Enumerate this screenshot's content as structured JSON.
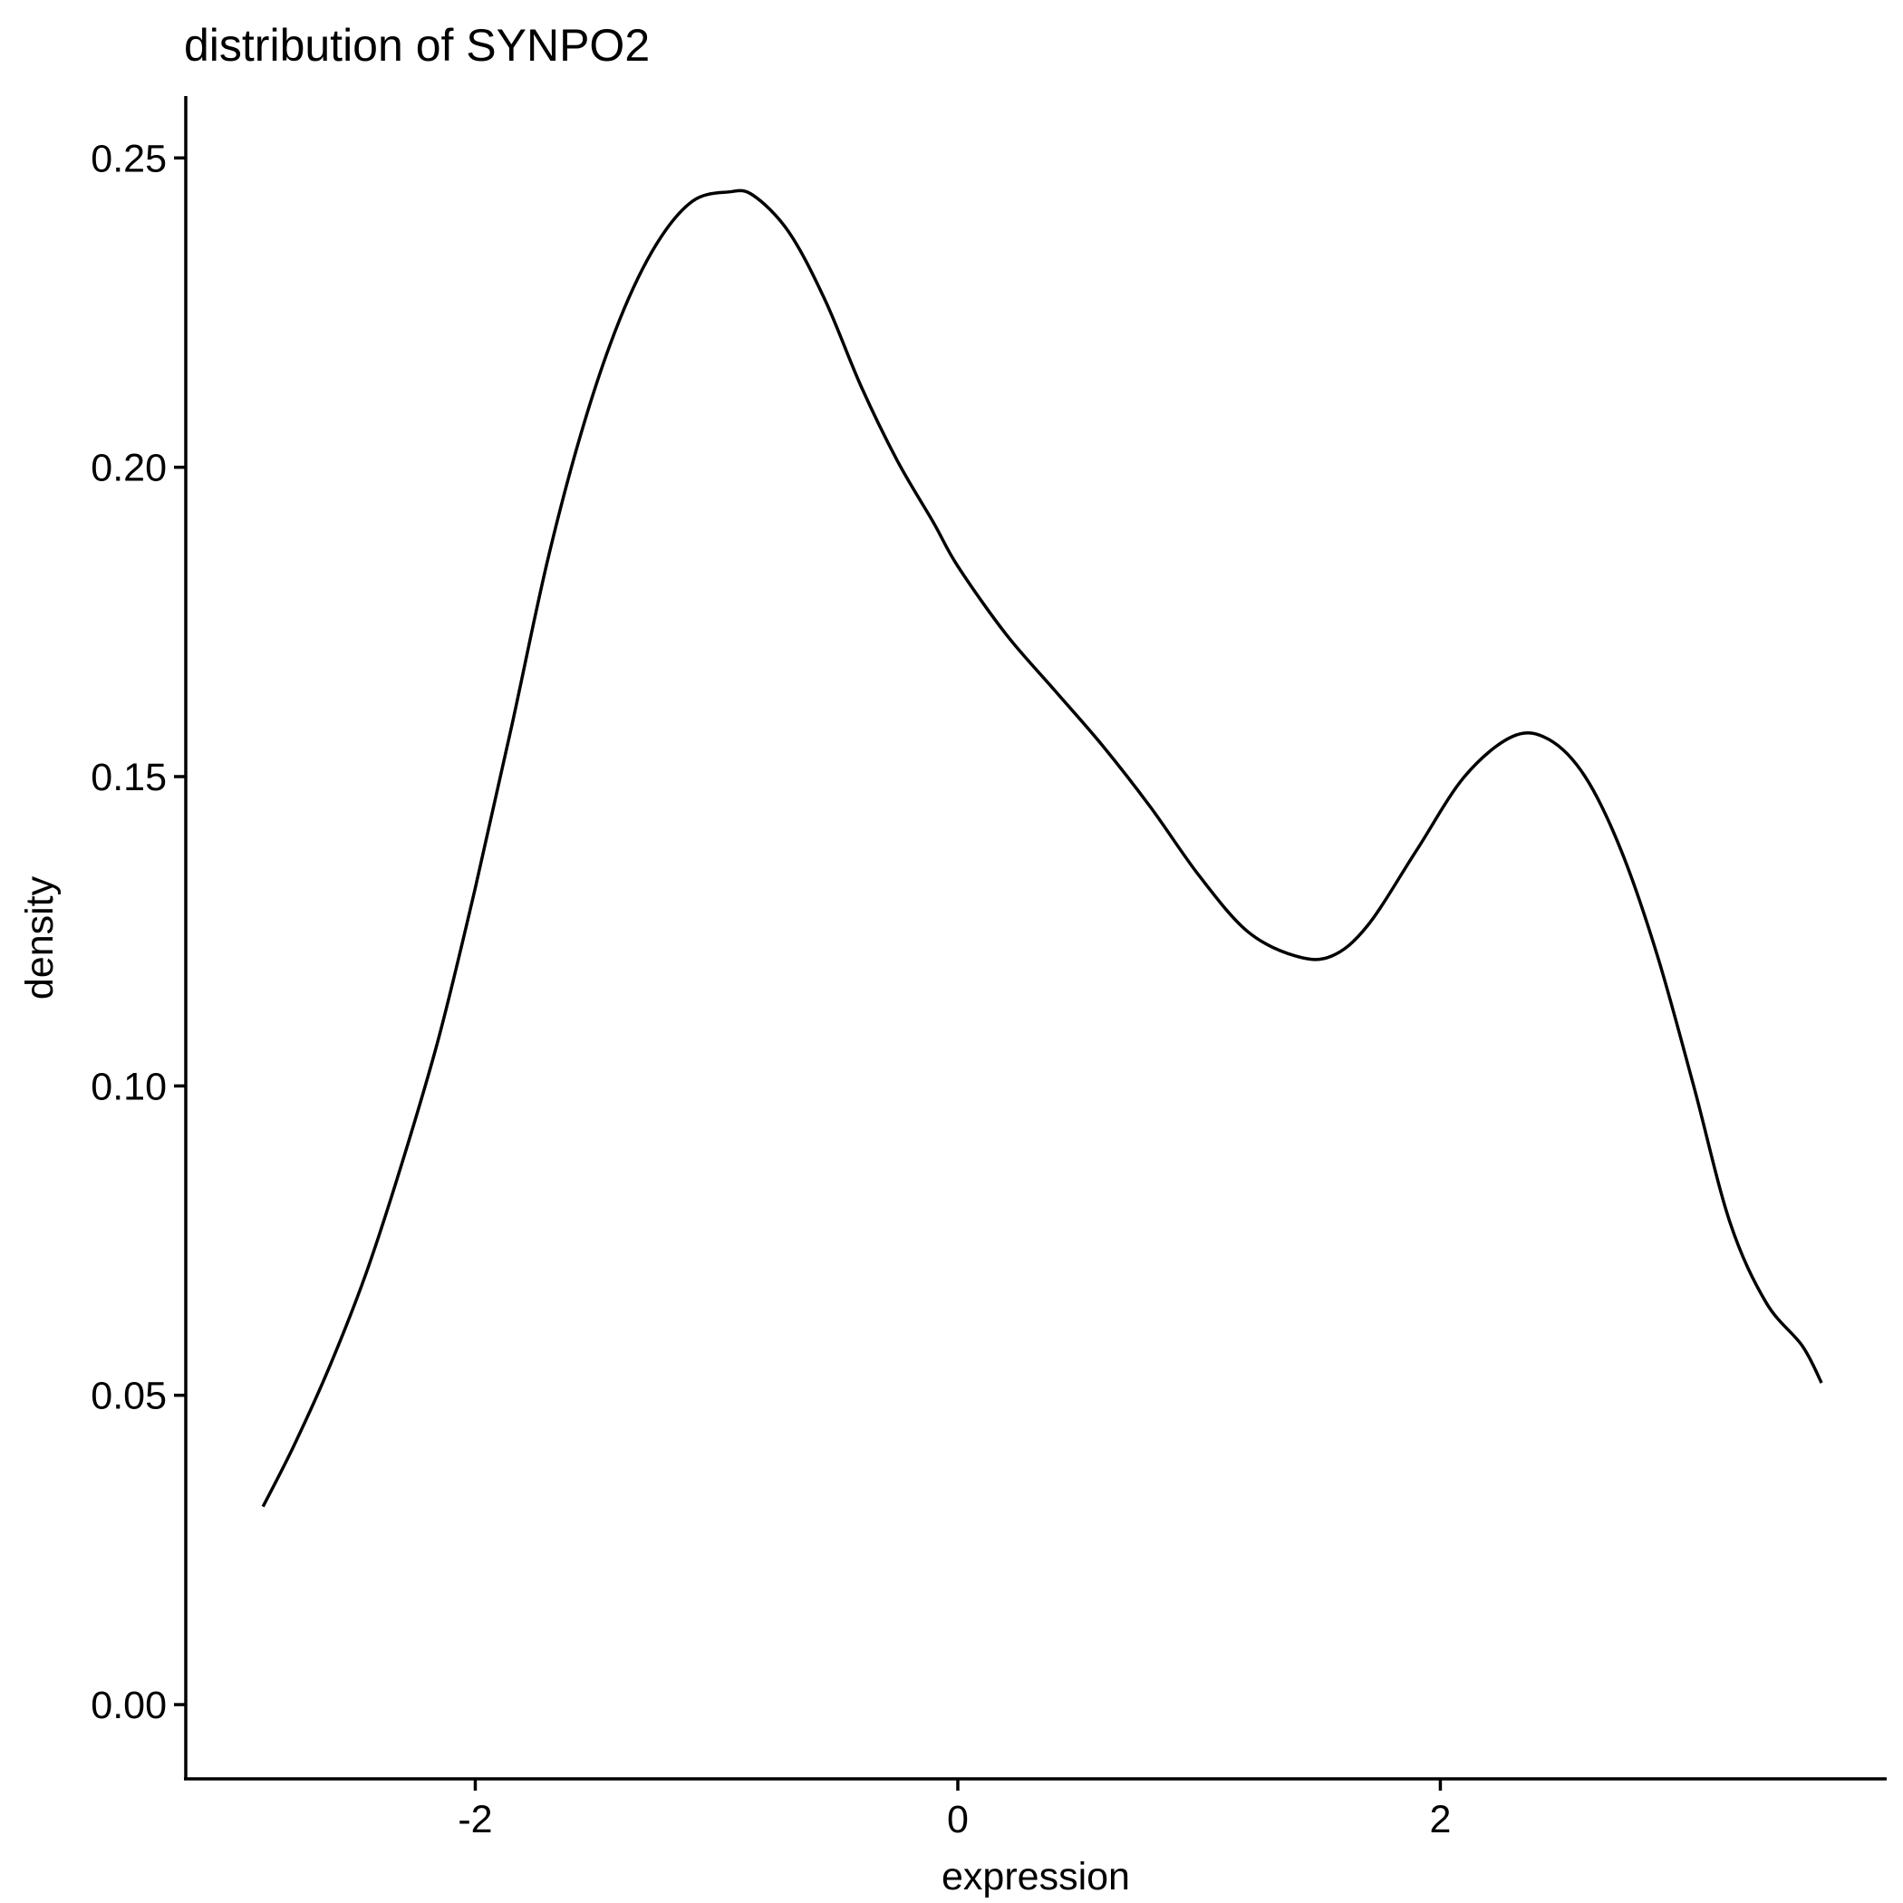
{
  "chart_data": {
    "type": "line",
    "title": "distribution of SYNPO2",
    "xlabel": "expression",
    "ylabel": "density",
    "xlim": [
      -3.2,
      3.85
    ],
    "ylim": [
      -0.012,
      0.26
    ],
    "x_ticks": [
      {
        "value": -2,
        "label": "-2"
      },
      {
        "value": 0,
        "label": "0"
      },
      {
        "value": 2,
        "label": "2"
      }
    ],
    "y_ticks": [
      {
        "value": 0.0,
        "label": "0.00"
      },
      {
        "value": 0.05,
        "label": "0.05"
      },
      {
        "value": 0.1,
        "label": "0.10"
      },
      {
        "value": 0.15,
        "label": "0.15"
      },
      {
        "value": 0.2,
        "label": "0.20"
      },
      {
        "value": 0.25,
        "label": "0.25"
      }
    ],
    "grid": false,
    "legend": "none",
    "colors": {
      "line": "#000000",
      "axis": "#000000",
      "background": "#ffffff"
    },
    "series": [
      {
        "x": [
          -2.88,
          -2.75,
          -2.6,
          -2.45,
          -2.3,
          -2.15,
          -2.0,
          -1.85,
          -1.7,
          -1.55,
          -1.4,
          -1.25,
          -1.1,
          -0.95,
          -0.85,
          -0.7,
          -0.55,
          -0.4,
          -0.25,
          -0.1,
          0.0,
          0.2,
          0.4,
          0.6,
          0.8,
          1.0,
          1.2,
          1.4,
          1.55,
          1.7,
          1.9,
          2.1,
          2.3,
          2.45,
          2.6,
          2.75,
          2.9,
          3.05,
          3.2,
          3.35,
          3.5,
          3.58
        ],
        "y": [
          0.032,
          0.042,
          0.055,
          0.07,
          0.088,
          0.108,
          0.132,
          0.158,
          0.185,
          0.207,
          0.224,
          0.236,
          0.243,
          0.2445,
          0.244,
          0.238,
          0.227,
          0.213,
          0.201,
          0.191,
          0.184,
          0.173,
          0.164,
          0.155,
          0.145,
          0.134,
          0.125,
          0.121,
          0.121,
          0.126,
          0.138,
          0.15,
          0.1565,
          0.156,
          0.15,
          0.138,
          0.121,
          0.1,
          0.078,
          0.065,
          0.058,
          0.052
        ]
      }
    ]
  }
}
